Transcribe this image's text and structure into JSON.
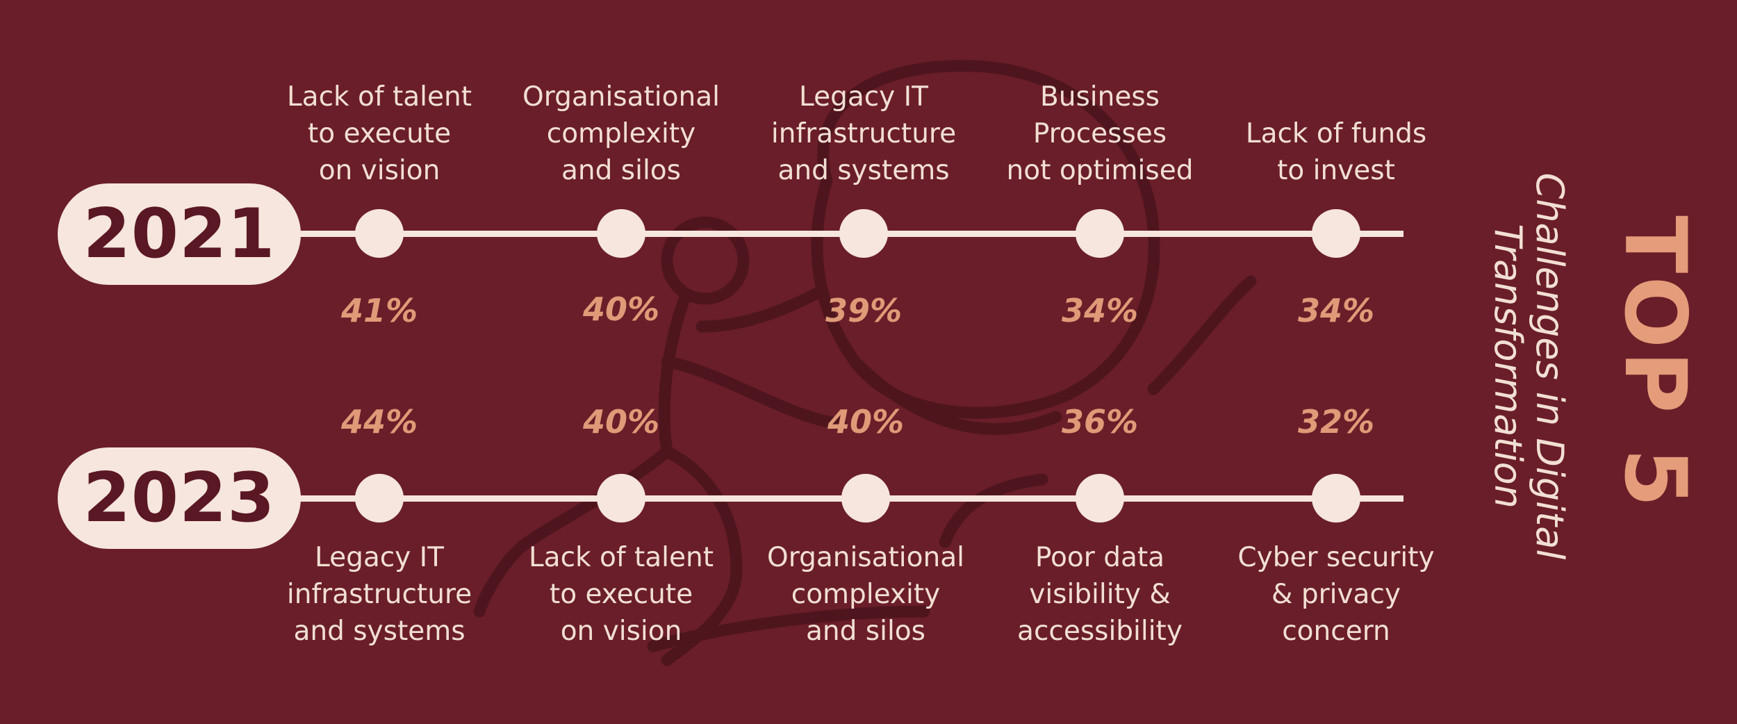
{
  "title": "TOP 5",
  "subtitle_line1": "Challenges in Digital",
  "subtitle_line2": "Transformation",
  "colors": {
    "background": "#6a1e29",
    "pill": "#f6e6dd",
    "percent": "#e09a78",
    "title": "#e59c7a",
    "text": "#f2dfd4"
  },
  "chart_data": {
    "type": "table",
    "rows": [
      {
        "year": "2021",
        "challenges": [
          {
            "label": "Lack of talent\nto execute\non vision",
            "percent_text": "41%",
            "value": 41
          },
          {
            "label": "Organisational\ncomplexity\nand silos",
            "percent_text": "40%",
            "value": 40
          },
          {
            "label": "Legacy IT\ninfrastructure\nand systems",
            "percent_text": "39%",
            "value": 39
          },
          {
            "label": "Business\nProcesses\nnot optimised",
            "percent_text": "34%",
            "value": 34
          },
          {
            "label": "Lack of funds\nto invest",
            "percent_text": "34%",
            "value": 34
          }
        ]
      },
      {
        "year": "2023",
        "challenges": [
          {
            "label": "Legacy IT\ninfrastructure\nand systems",
            "percent_text": "44%",
            "value": 44
          },
          {
            "label": "Lack of talent\nto execute\non vision",
            "percent_text": "40%",
            "value": 40
          },
          {
            "label": "Organisational\ncomplexity\nand silos",
            "percent_text": "40%",
            "value": 40
          },
          {
            "label": "Poor data\nvisibility &\naccessibility",
            "percent_text": "36%",
            "value": 36
          },
          {
            "label": "Cyber security\n& privacy\nconcern",
            "percent_text": "32%",
            "value": 32
          }
        ]
      }
    ]
  }
}
